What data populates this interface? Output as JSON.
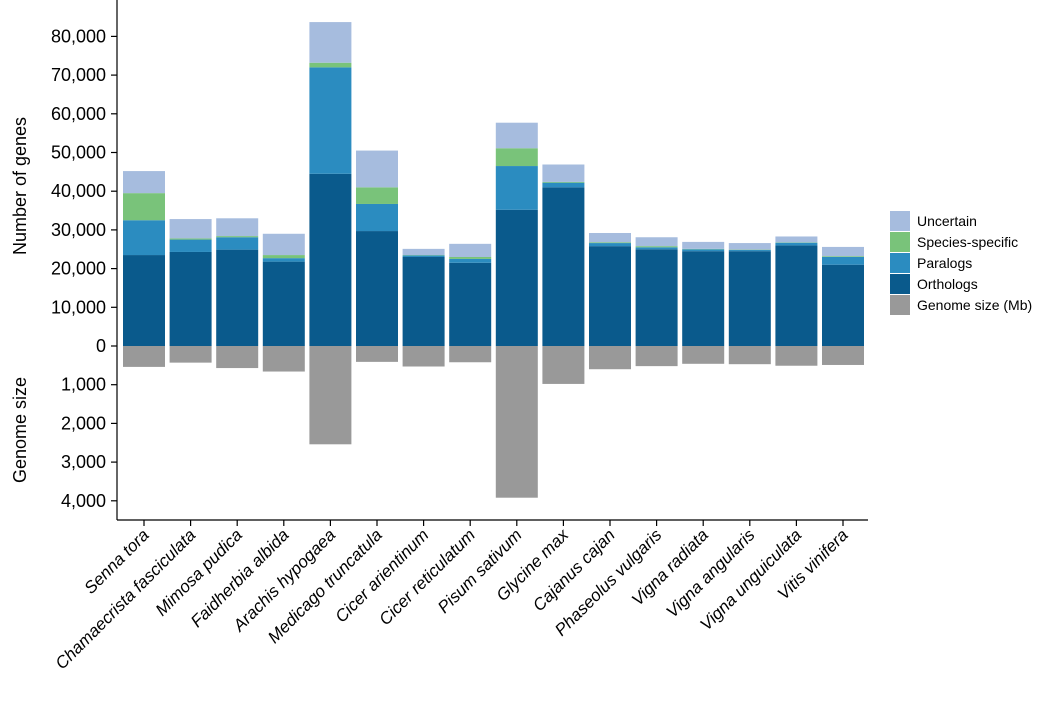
{
  "chart_data": {
    "type": "bar",
    "stacked": true,
    "categories": [
      "Senna tora",
      "Chamaecrista fasciculata",
      "Mimosa pudica",
      "Faidherbia albida",
      "Arachis hypogaea",
      "Medicago truncatula",
      "Cicer arientinum",
      "Cicer reticulatum",
      "Pisum sativum",
      "Glycine max",
      "Cajanus cajan",
      "Phaseolus vulgaris",
      "Vigna radiata",
      "Vigna angularis",
      "Vigna unguiculata",
      "Vitis vinifera"
    ],
    "series": [
      {
        "name": "Orthologs",
        "color": "#0a5a8c",
        "values": [
          23500,
          24300,
          24900,
          21800,
          44500,
          29700,
          23000,
          21500,
          35200,
          41000,
          25800,
          25000,
          24500,
          24500,
          26000,
          21000
        ]
      },
      {
        "name": "Paralogs",
        "color": "#2b8cc0",
        "values": [
          9000,
          3200,
          3200,
          900,
          27500,
          7000,
          400,
          1000,
          11300,
          1200,
          800,
          500,
          500,
          300,
          700,
          2000
        ]
      },
      {
        "name": "Species-specific",
        "color": "#79c37a",
        "values": [
          7000,
          300,
          300,
          800,
          1200,
          4300,
          100,
          500,
          4600,
          200,
          200,
          300,
          100,
          100,
          100,
          200
        ]
      },
      {
        "name": "Uncertain",
        "color": "#a6bcde",
        "values": [
          5700,
          5000,
          4600,
          5500,
          10500,
          9500,
          1600,
          3400,
          6600,
          4500,
          2400,
          2300,
          1800,
          1700,
          1500,
          2400
        ]
      }
    ],
    "genome_size": {
      "name": "Genome size (Mb)",
      "color": "#999999",
      "values": [
        540,
        430,
        570,
        660,
        2540,
        410,
        530,
        420,
        3920,
        980,
        600,
        520,
        460,
        470,
        510,
        490
      ]
    },
    "legend_order": [
      "Uncertain",
      "Species-specific",
      "Paralogs",
      "Orthologs",
      "Genome size (Mb)"
    ],
    "ylabel_top": "Number of genes",
    "ylabel_bottom": "Genome size",
    "ylim_top": [
      0,
      85000
    ],
    "yticks_top": [
      0,
      10000,
      20000,
      30000,
      40000,
      50000,
      60000,
      70000,
      80000
    ],
    "ytick_labels_top": [
      "0",
      "10,000",
      "20,000",
      "30,000",
      "40,000",
      "50,000",
      "60,000",
      "70,000",
      "80,000"
    ],
    "ylim_bottom": [
      0,
      4500
    ],
    "yticks_bottom": [
      1000,
      2000,
      3000,
      4000
    ],
    "ytick_labels_bottom": [
      "1,000",
      "2,000",
      "3,000",
      "4,000"
    ],
    "legend_position": "right",
    "grid": false
  }
}
